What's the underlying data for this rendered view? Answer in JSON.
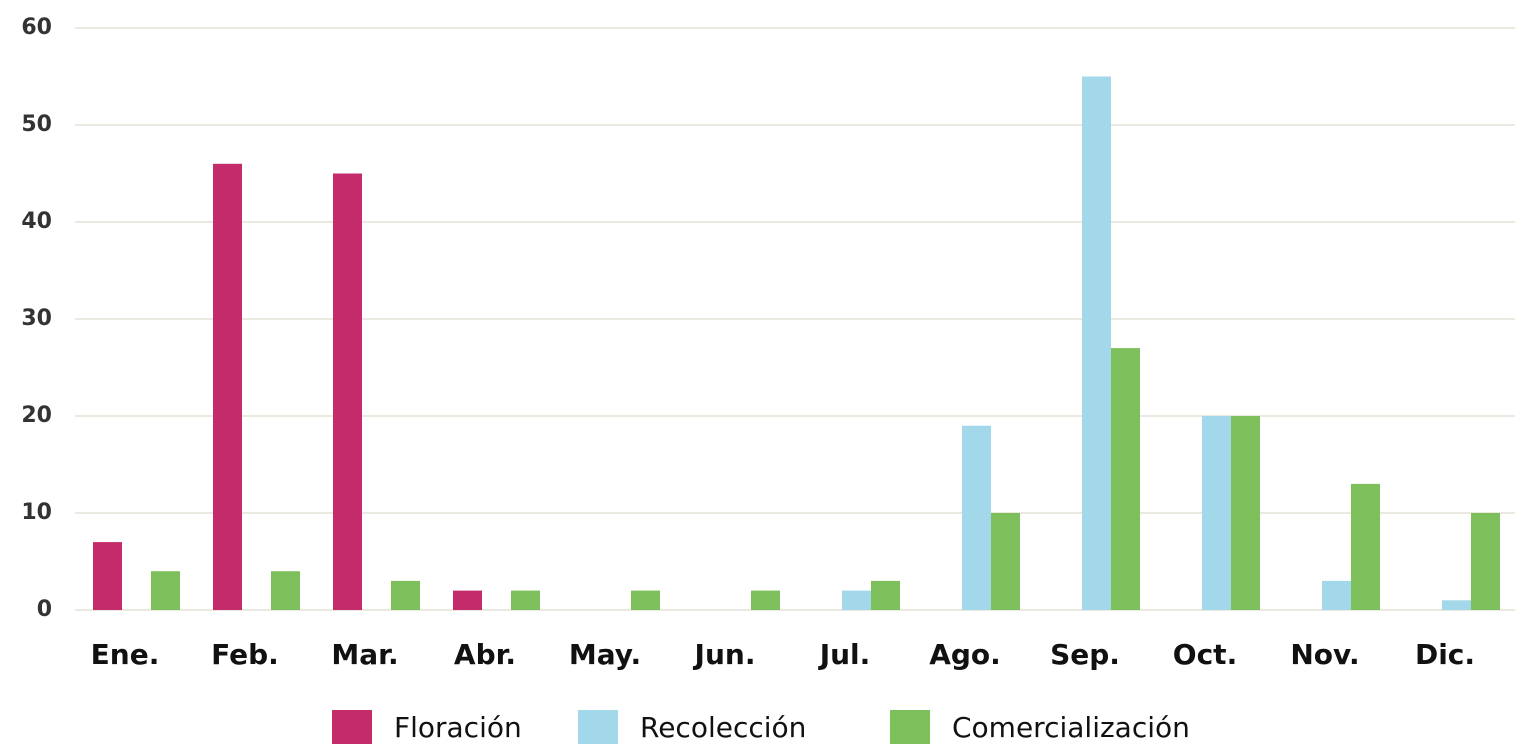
{
  "chart_data": {
    "type": "bar",
    "categories": [
      "Ene.",
      "Feb.",
      "Mar.",
      "Abr.",
      "May.",
      "Jun.",
      "Jul.",
      "Ago.",
      "Sep.",
      "Oct.",
      "Nov.",
      "Dic."
    ],
    "series": [
      {
        "name": "Floración",
        "color": "#c42b6a",
        "values": [
          7,
          46,
          45,
          2,
          0,
          0,
          0,
          0,
          0,
          0,
          0,
          0
        ]
      },
      {
        "name": "Recolección",
        "color": "#a3d8ea",
        "values": [
          0,
          0,
          0,
          0,
          0,
          0,
          2,
          19,
          55,
          20,
          3,
          1
        ]
      },
      {
        "name": "Comercialización",
        "color": "#7dbf5a",
        "values": [
          4,
          4,
          3,
          2,
          2,
          2,
          3,
          10,
          27,
          20,
          13,
          10
        ]
      }
    ],
    "ylim": [
      0,
      60
    ],
    "yticks": [
      0,
      10,
      20,
      30,
      40,
      50,
      60
    ],
    "grid": true,
    "legend": "bottom"
  }
}
